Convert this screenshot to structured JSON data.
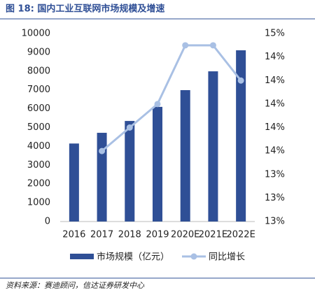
{
  "chart_data": {
    "type": "bar-line",
    "title": "图 18: 国内工业互联网市场规模及增速",
    "categories": [
      "2016",
      "2017",
      "2018",
      "2019",
      "2020E",
      "2021E",
      "2022E"
    ],
    "series": [
      {
        "name": "市场规模（亿元）",
        "type": "bar",
        "color": "#2f4f96",
        "values": [
          4150,
          4720,
          5350,
          6100,
          6990,
          7990,
          9110
        ]
      },
      {
        "name": "同比增长",
        "type": "line",
        "axis": "y2",
        "color": "#a9c0e4",
        "values": [
          null,
          13.5,
          13.7,
          13.9,
          14.4,
          14.4,
          14.1
        ]
      }
    ],
    "ylim": [
      0,
      10000
    ],
    "yticks": [
      0,
      1000,
      2000,
      3000,
      4000,
      5000,
      6000,
      7000,
      8000,
      9000,
      10000
    ],
    "y2lim": [
      12.9,
      14.5
    ],
    "y2ticks": [
      {
        "value": 12.9,
        "label": "13%"
      },
      {
        "value": 13.1,
        "label": "13%"
      },
      {
        "value": 13.3,
        "label": "13%"
      },
      {
        "value": 13.5,
        "label": "14%"
      },
      {
        "value": 13.7,
        "label": "14%"
      },
      {
        "value": 13.9,
        "label": "14%"
      },
      {
        "value": 14.1,
        "label": "14%"
      },
      {
        "value": 14.3,
        "label": "14%"
      },
      {
        "value": 14.5,
        "label": "15%"
      }
    ],
    "source": "资料来源：赛迪顾问，信达证券研发中心"
  }
}
